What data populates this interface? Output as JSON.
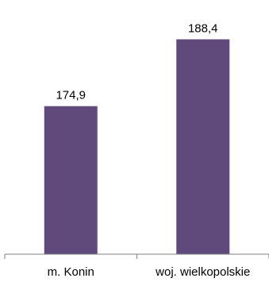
{
  "chart_data": {
    "type": "bar",
    "categories": [
      "m. Konin",
      "woj. wielkopolskie"
    ],
    "values": [
      174.9,
      188.4
    ],
    "value_labels": [
      "174,9",
      "188,4"
    ],
    "title": "",
    "xlabel": "",
    "ylabel": "",
    "ylim": [
      145,
      192
    ],
    "grid": false,
    "legend": "none",
    "colors": {
      "bar": "#604a7b",
      "axis": "#808080"
    }
  }
}
